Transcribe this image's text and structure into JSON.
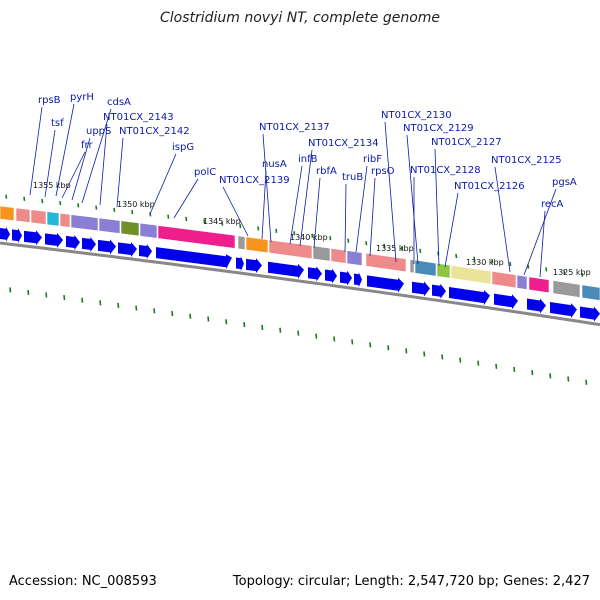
{
  "title": "Clostridium novyi NT, complete genome",
  "accession_label": "Accession: NC_008593",
  "summary_label": "Topology: circular; Length: 2,547,720 bp; Genes: 2,427",
  "kbp_labels": [
    "1355 kbp",
    "1350 kbp",
    "1345 kbp",
    "1340 kbp",
    "1335 kbp",
    "1330 kbp",
    "1325 kbp"
  ],
  "gene_labels": [
    "rpsB",
    "tsf",
    "pyrH",
    "frr",
    "uppS",
    "cdsA",
    "NT01CX_2143",
    "NT01CX_2142",
    "ispG",
    "polC",
    "NT01CX_2139",
    "nusA",
    "NT01CX_2137",
    "infB",
    "NT01CX_2134",
    "rbfA",
    "truB",
    "ribF",
    "rpsO",
    "NT01CX_2130",
    "NT01CX_2129",
    "NT01CX_2128",
    "NT01CX_2127",
    "NT01CX_2126",
    "NT01CX_2125",
    "pgsA",
    "recA"
  ],
  "colors": {
    "label": "#0a1aa8",
    "forward_strand_arrow": "#0000ee",
    "tick": "#1a7a1a",
    "backbone": "#888888",
    "cog_palette": [
      "#f7941d",
      "#ee8a8a",
      "#22b8d6",
      "#8a7fd4",
      "#6f8f2a",
      "#ee1e8c",
      "#9a9a9a",
      "#4a8ab8",
      "#8cc63f",
      "#ece39a",
      "#c8b060"
    ]
  }
}
